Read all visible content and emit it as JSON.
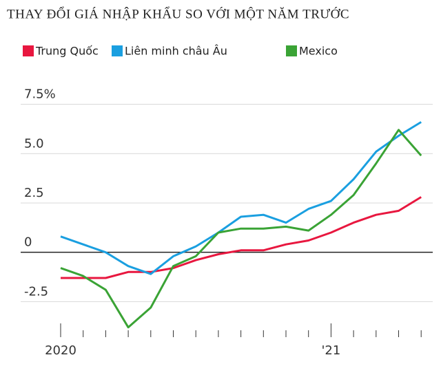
{
  "chart_data": {
    "type": "line",
    "title": "THAY ĐỔI GIÁ NHẬP KHẨU SO VỚI MỘT NĂM TRƯỚC",
    "categories": [
      "2020",
      null,
      null,
      null,
      null,
      null,
      null,
      null,
      null,
      null,
      null,
      null,
      "'21",
      null,
      null,
      null,
      null
    ],
    "series": [
      {
        "name": "Trung Quốc",
        "color": "#e8173f",
        "values": [
          -1.3,
          -1.3,
          -1.3,
          -1.0,
          -1.0,
          -0.8,
          -0.4,
          -0.1,
          0.1,
          0.1,
          0.4,
          0.6,
          1.0,
          1.5,
          1.9,
          2.1,
          2.8
        ]
      },
      {
        "name": "Liên minh châu Âu",
        "color": "#1a9fe0",
        "values": [
          0.8,
          0.4,
          0.0,
          -0.7,
          -1.1,
          -0.2,
          0.3,
          1.0,
          1.8,
          1.9,
          1.5,
          2.2,
          2.6,
          3.7,
          5.1,
          5.9,
          6.6
        ]
      },
      {
        "name": "Mexico",
        "color": "#3aa335",
        "values": [
          -0.8,
          -1.2,
          -1.9,
          -3.8,
          -2.8,
          -0.7,
          -0.2,
          1.0,
          1.2,
          1.2,
          1.3,
          1.1,
          1.9,
          2.9,
          4.5,
          6.2,
          4.9
        ]
      }
    ],
    "ylim": [
      -4.3,
      8.6
    ],
    "yticks": [
      {
        "value": 7.5,
        "label": "7.5%"
      },
      {
        "value": 5,
        "label": "5.0"
      },
      2.5,
      0,
      -2.5
    ],
    "grid": true
  }
}
